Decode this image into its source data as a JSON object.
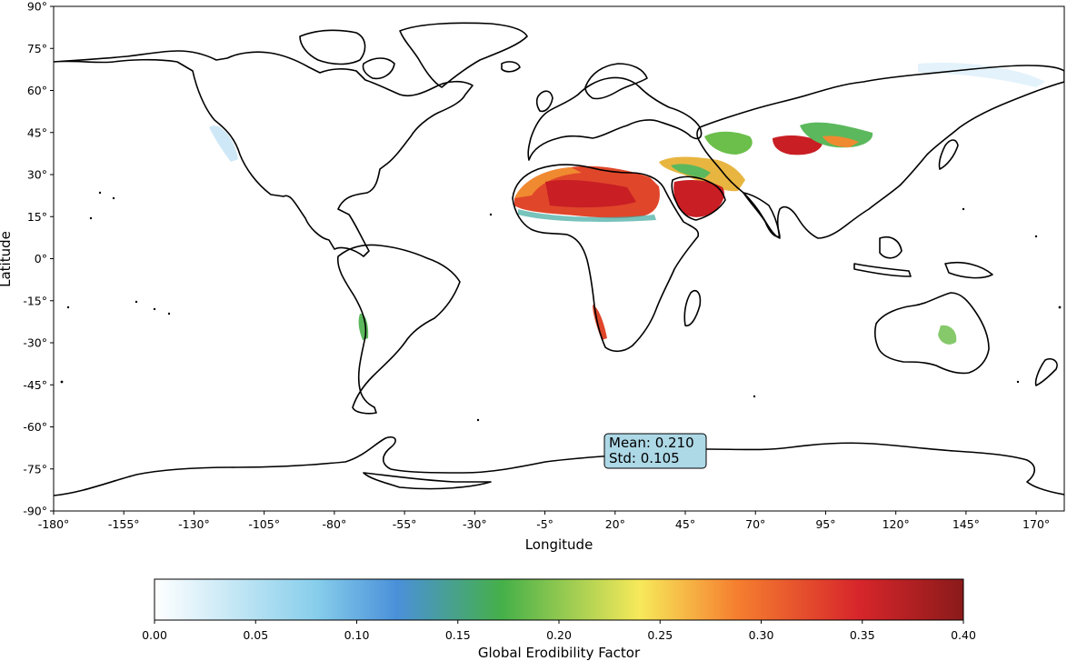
{
  "map": {
    "xlabel": "Longitude",
    "ylabel": "Latitude",
    "lon_ticks": [
      "-180°",
      "-155°",
      "-130°",
      "-105°",
      "-80°",
      "-55°",
      "-30°",
      "-5°",
      "20°",
      "45°",
      "70°",
      "95°",
      "120°",
      "145°",
      "170°"
    ],
    "lat_ticks": [
      "90°",
      "75°",
      "60°",
      "45°",
      "30°",
      "15°",
      "0°",
      "-15°",
      "-30°",
      "-45°",
      "-60°",
      "-75°",
      "-90°"
    ],
    "stats": {
      "mean": "Mean: 0.210",
      "std": "Std: 0.105"
    },
    "hotspots": [
      {
        "region": "Sahara",
        "lon": [
          -14,
          32
        ],
        "lat": [
          14,
          33
        ],
        "value": 0.32
      },
      {
        "region": "Arabian Peninsula",
        "lon": [
          36,
          58
        ],
        "lat": [
          15,
          30
        ],
        "value": 0.35
      },
      {
        "region": "Middle East / Iran",
        "lon": [
          40,
          62
        ],
        "lat": [
          25,
          38
        ],
        "value": 0.22
      },
      {
        "region": "Central Asia",
        "lon": [
          50,
          68
        ],
        "lat": [
          37,
          46
        ],
        "value": 0.18
      },
      {
        "region": "Taklamakan / Gobi",
        "lon": [
          74,
          112
        ],
        "lat": [
          37,
          48
        ],
        "value": 0.3
      },
      {
        "region": "Namib",
        "lon": [
          12,
          17
        ],
        "lat": [
          -30,
          -17
        ],
        "value": 0.3
      },
      {
        "region": "Atacama",
        "lon": [
          -72,
          -66
        ],
        "lat": [
          -30,
          -16
        ],
        "value": 0.18
      },
      {
        "region": "Central Australia",
        "lon": [
          132,
          138
        ],
        "lat": [
          -30,
          -22
        ],
        "value": 0.17
      }
    ]
  },
  "colorbar": {
    "label": "Global Erodibility Factor",
    "ticks": [
      "0.00",
      "0.05",
      "0.10",
      "0.15",
      "0.20",
      "0.25",
      "0.30",
      "0.35",
      "0.40"
    ],
    "range": [
      0,
      0.4
    ],
    "stops": [
      "#ffffff",
      "#87ceeb",
      "#4a90d9",
      "#45b049",
      "#f7e95a",
      "#f57f2f",
      "#d7262b",
      "#8b1a1a"
    ]
  }
}
